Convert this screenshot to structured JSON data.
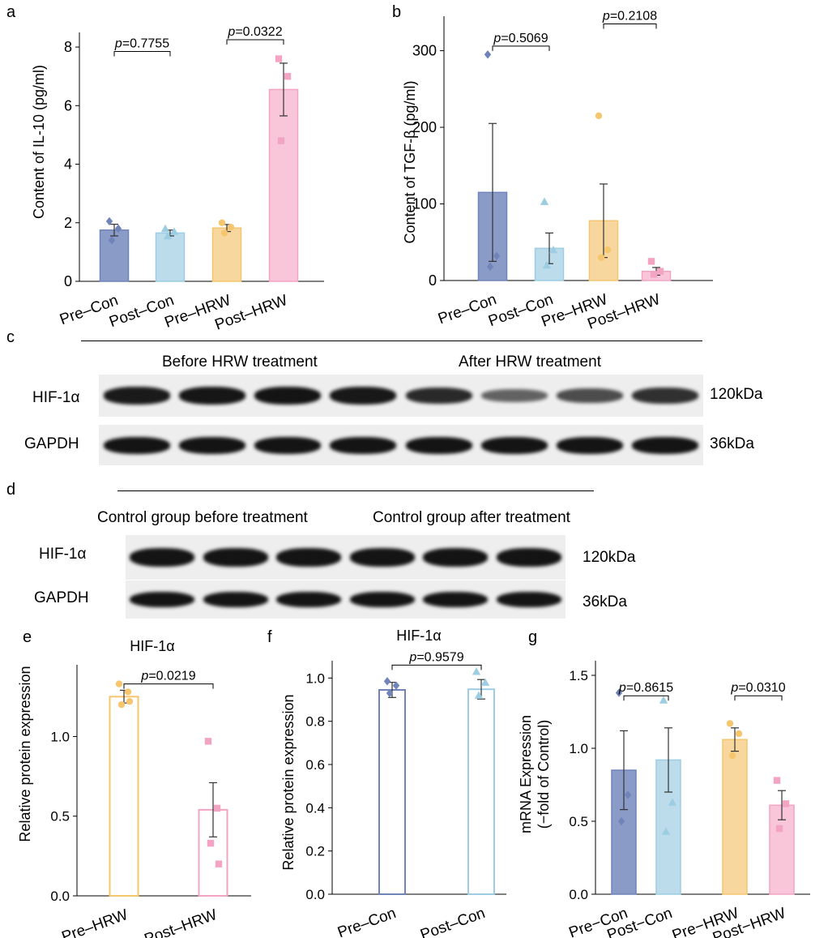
{
  "panels": {
    "a": "a",
    "b": "b",
    "c": "c",
    "d": "d",
    "e": "e",
    "f": "f",
    "g": "g"
  },
  "blot_c": {
    "group_left": "Before HRW treatment",
    "group_right": "After HRW treatment",
    "rows": [
      {
        "label": "HIF-1α",
        "kda": "120kDa",
        "intensities": [
          0.95,
          0.98,
          1.0,
          0.97,
          0.85,
          0.45,
          0.6,
          0.8
        ]
      },
      {
        "label": "GAPDH",
        "kda": "36kDa",
        "intensities": [
          1.0,
          1.0,
          1.0,
          1.0,
          1.0,
          1.0,
          1.0,
          1.0
        ]
      }
    ]
  },
  "blot_d": {
    "group_left": "Control group before treatment",
    "group_right": "Control group after treatment",
    "rows": [
      {
        "label": "HIF-1α",
        "kda": "120kDa",
        "intensities": [
          1.0,
          1.0,
          1.0,
          1.0,
          1.0,
          1.0
        ]
      },
      {
        "label": "GAPDH",
        "kda": "36kDa",
        "intensities": [
          1.0,
          1.0,
          1.0,
          1.0,
          1.0,
          1.0
        ]
      }
    ]
  },
  "colors": {
    "pre_con": "#8a9bc8",
    "pre_con_dot": "#7184b9",
    "post_con": "#bcdcec",
    "post_con_dot": "#9ccde3",
    "pre_hrw": "#f8d79e",
    "pre_hrw_dot": "#f6c66e",
    "post_hrw": "#f8c6d8",
    "post_hrw_dot": "#f2a4c2"
  },
  "chart_data": [
    {
      "id": "a",
      "type": "bar",
      "title": "",
      "xlabel": "",
      "ylabel": "Content of IL-10 (pg/ml)",
      "ylim": [
        0,
        8.5
      ],
      "yticks": [
        "0",
        "2",
        "4",
        "6",
        "8"
      ],
      "ytick_values": [
        0,
        2,
        4,
        6,
        8
      ],
      "categories": [
        "Pre–Con",
        "Post–Con",
        "Pre–HRW",
        "Post–HRW"
      ],
      "values": [
        1.75,
        1.65,
        1.82,
        6.55
      ],
      "errors": [
        0.2,
        0.1,
        0.12,
        0.9
      ],
      "points": [
        [
          2.05,
          1.8,
          1.4
        ],
        [
          1.8,
          1.7,
          1.55
        ],
        [
          2.0,
          1.85,
          1.65
        ],
        [
          7.6,
          7.0,
          4.8
        ]
      ],
      "comparisons": [
        {
          "from": 0,
          "to": 1,
          "label": "=0.7755",
          "y": 7.85
        },
        {
          "from": 2,
          "to": 3,
          "label": "=0.0322",
          "y": 8.25
        }
      ],
      "filled": true
    },
    {
      "id": "b",
      "type": "bar",
      "title": "",
      "xlabel": "",
      "ylabel": "Content of TGF-β (pg/ml)",
      "ylim": [
        0,
        345
      ],
      "yticks": [
        "0",
        "100",
        "200",
        "300"
      ],
      "ytick_values": [
        0,
        100,
        200,
        300
      ],
      "categories": [
        "Pre–Con",
        "Post–Con",
        "Pre–HRW",
        "Post–HRW"
      ],
      "values": [
        115,
        42,
        78,
        12
      ],
      "errors": [
        90,
        20,
        48,
        5
      ],
      "points": [
        [
          295,
          32,
          18
        ],
        [
          103,
          40,
          20
        ],
        [
          215,
          40,
          30
        ],
        [
          25,
          12,
          8
        ]
      ],
      "comparisons": [
        {
          "from": 0,
          "to": 1,
          "label": "=0.5069",
          "y": 306
        },
        {
          "from": 2,
          "to": 3,
          "label": "=0.2108",
          "y": 335
        }
      ],
      "filled": true
    },
    {
      "id": "e",
      "type": "bar",
      "title": "HIF-1α",
      "xlabel": "",
      "ylabel": "Relative protein expression",
      "ylim": [
        0,
        1.45
      ],
      "yticks": [
        "0.0",
        "0.5",
        "1.0"
      ],
      "ytick_values": [
        0,
        0.5,
        1.0
      ],
      "categories": [
        "Pre–HRW",
        "Post–HRW"
      ],
      "values": [
        1.25,
        0.54
      ],
      "errors": [
        0.04,
        0.17
      ],
      "points": [
        [
          1.33,
          1.28,
          1.2,
          1.22
        ],
        [
          0.97,
          0.55,
          0.33,
          0.2
        ]
      ],
      "comparisons": [
        {
          "from": 0,
          "to": 1,
          "label": "=0.0219",
          "y": 1.33
        }
      ],
      "filled": false
    },
    {
      "id": "f",
      "type": "bar",
      "title": "HIF-1α",
      "xlabel": "",
      "ylabel": "Relative protein expression",
      "ylim": [
        0,
        1.08
      ],
      "yticks": [
        "0.0",
        "0.2",
        "0.4",
        "0.6",
        "0.8",
        "1.0"
      ],
      "ytick_values": [
        0,
        0.2,
        0.4,
        0.6,
        0.8,
        1.0
      ],
      "categories": [
        "Pre–Con",
        "Post–Con"
      ],
      "values": [
        0.945,
        0.948
      ],
      "errors": [
        0.035,
        0.045
      ],
      "points": [
        [
          0.985,
          0.965,
          0.93
        ],
        [
          1.03,
          0.98,
          0.92
        ]
      ],
      "comparisons": [
        {
          "from": 0,
          "to": 1,
          "label": "=0.9579",
          "y": 1.06
        }
      ],
      "filled": false
    },
    {
      "id": "g",
      "type": "bar",
      "title": "",
      "xlabel": "",
      "ylabel": "mRNA Expression",
      "ylabel2": "(−fold of Control)",
      "ylim": [
        0,
        1.6
      ],
      "yticks": [
        "0.0",
        "0.5",
        "1.0",
        "1.5"
      ],
      "ytick_values": [
        0,
        0.5,
        1.0,
        1.5
      ],
      "categories": [
        "Pre−Con",
        "Post−Con",
        "Pre−HRW",
        "Post−HRW"
      ],
      "values": [
        0.85,
        0.92,
        1.06,
        0.61
      ],
      "errors": [
        0.27,
        0.22,
        0.08,
        0.1
      ],
      "points": [
        [
          1.38,
          0.68,
          0.5
        ],
        [
          1.33,
          0.63,
          0.43
        ],
        [
          1.17,
          1.1,
          0.95
        ],
        [
          0.78,
          0.62,
          0.45
        ]
      ],
      "comparisons": [
        {
          "from": 0,
          "to": 1,
          "label": "=0.8615",
          "y": 1.36
        },
        {
          "from": 2,
          "to": 3,
          "label": "=0.0310",
          "y": 1.36
        }
      ],
      "filled": true
    }
  ]
}
